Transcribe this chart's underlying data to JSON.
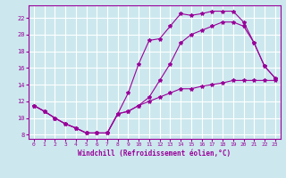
{
  "xlabel": "Windchill (Refroidissement éolien,°C)",
  "bg_color": "#cce8ee",
  "line_color": "#990099",
  "grid_color": "#ffffff",
  "xlim": [
    -0.5,
    23.5
  ],
  "ylim": [
    7.5,
    23.5
  ],
  "xticks": [
    0,
    1,
    2,
    3,
    4,
    5,
    6,
    7,
    8,
    9,
    10,
    11,
    12,
    13,
    14,
    15,
    16,
    17,
    18,
    19,
    20,
    21,
    22,
    23
  ],
  "yticks": [
    8,
    10,
    12,
    14,
    16,
    18,
    20,
    22
  ],
  "line1_x": [
    0,
    1,
    2,
    3,
    4,
    5,
    6,
    7,
    8,
    9,
    10,
    11,
    12,
    13,
    14,
    15,
    16,
    17,
    18,
    19,
    20,
    21,
    22,
    23
  ],
  "line1_y": [
    11.5,
    10.8,
    10.0,
    9.3,
    8.8,
    8.2,
    8.2,
    8.2,
    10.5,
    13.0,
    16.5,
    19.3,
    19.5,
    21.0,
    22.5,
    22.3,
    22.5,
    22.8,
    22.8,
    22.8,
    21.5,
    19.0,
    16.2,
    14.8
  ],
  "line2_x": [
    0,
    1,
    2,
    3,
    4,
    5,
    6,
    7,
    8,
    9,
    10,
    11,
    12,
    13,
    14,
    15,
    16,
    17,
    18,
    19,
    20,
    21,
    22,
    23
  ],
  "line2_y": [
    11.5,
    10.8,
    10.0,
    9.3,
    8.8,
    8.2,
    8.2,
    8.2,
    10.5,
    10.8,
    11.5,
    12.0,
    12.5,
    13.0,
    13.5,
    13.5,
    13.8,
    14.0,
    14.2,
    14.5,
    14.5,
    14.5,
    14.5,
    14.5
  ],
  "line3_x": [
    0,
    1,
    2,
    3,
    4,
    5,
    6,
    7,
    8,
    9,
    10,
    11,
    12,
    13,
    14,
    15,
    16,
    17,
    18,
    19,
    20,
    21,
    22,
    23
  ],
  "line3_y": [
    11.5,
    10.8,
    10.0,
    9.3,
    8.8,
    8.2,
    8.2,
    8.2,
    10.5,
    10.8,
    11.5,
    12.5,
    14.5,
    16.5,
    19.0,
    20.0,
    20.5,
    21.0,
    21.5,
    21.5,
    21.0,
    19.0,
    16.2,
    14.8
  ]
}
